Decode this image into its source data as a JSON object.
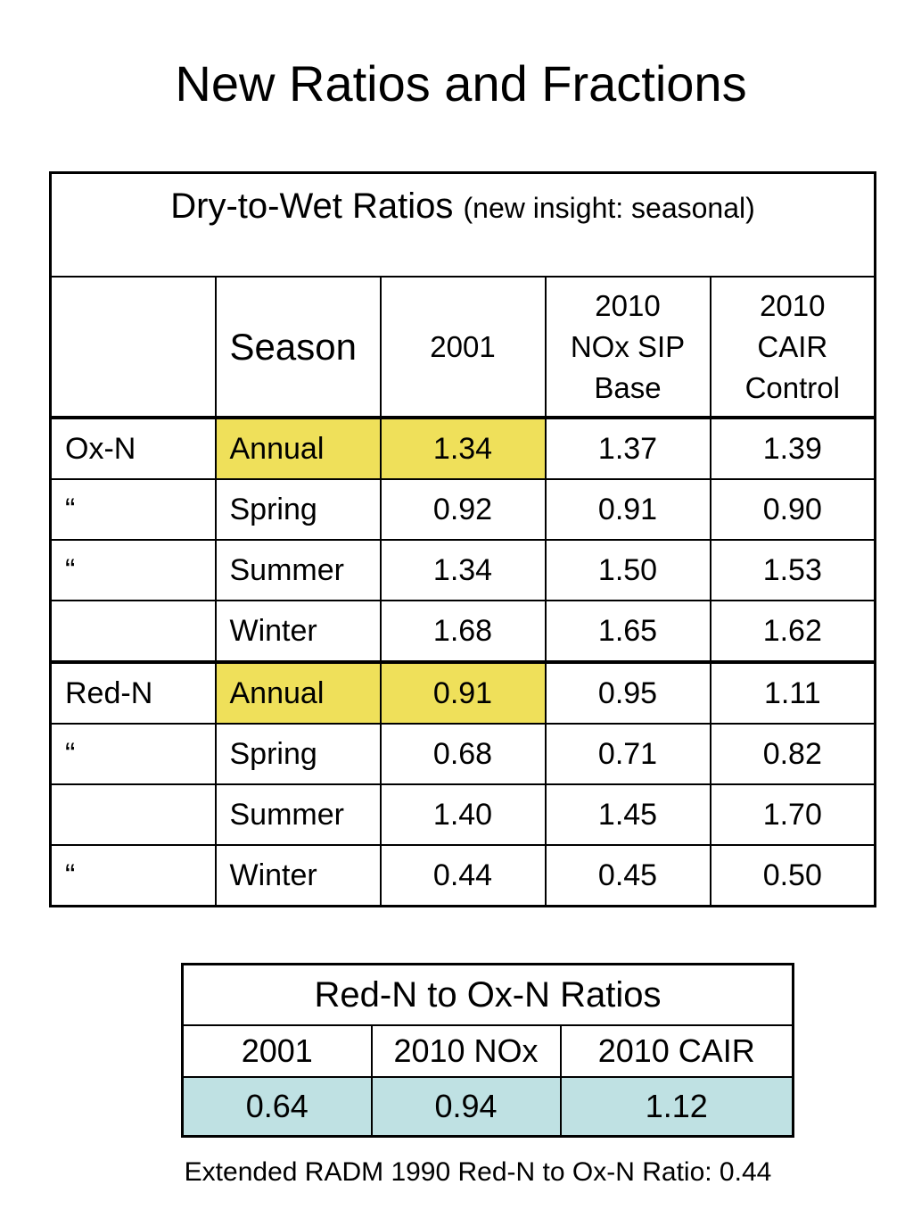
{
  "title": "New Ratios and Fractions",
  "table1": {
    "caption_main": "Dry-to-Wet Ratios",
    "caption_sub": "(new insight: seasonal)",
    "headers": [
      "",
      "Season",
      "2001",
      "2010\nNOx SIP\nBase",
      "2010\nCAIR\nControl"
    ],
    "rows": [
      {
        "group": "Ox-N",
        "season": "Annual",
        "v2001": "1.34",
        "v2010nox": "1.37",
        "v2010cair": "1.39",
        "highlight": true
      },
      {
        "group": "“",
        "season": "Spring",
        "v2001": "0.92",
        "v2010nox": "0.91",
        "v2010cair": "0.90",
        "highlight": false
      },
      {
        "group": "“",
        "season": "Summer",
        "v2001": "1.34",
        "v2010nox": "1.50",
        "v2010cair": "1.53",
        "highlight": false
      },
      {
        "group": "",
        "season": "Winter",
        "v2001": "1.68",
        "v2010nox": "1.65",
        "v2010cair": "1.62",
        "highlight": false
      },
      {
        "group": "Red-N",
        "season": "Annual",
        "v2001": "0.91",
        "v2010nox": "0.95",
        "v2010cair": "1.11",
        "highlight": true
      },
      {
        "group": "“",
        "season": "Spring",
        "v2001": "0.68",
        "v2010nox": "0.71",
        "v2010cair": "0.82",
        "highlight": false
      },
      {
        "group": "",
        "season": "Summer",
        "v2001": "1.40",
        "v2010nox": "1.45",
        "v2010cair": "1.70",
        "highlight": false
      },
      {
        "group": "“",
        "season": "Winter",
        "v2001": "0.44",
        "v2010nox": "0.45",
        "v2010cair": "0.50",
        "highlight": false
      }
    ]
  },
  "table2": {
    "title": "Red-N to Ox-N Ratios",
    "headers": [
      "2001",
      "2010 NOx",
      "2010 CAIR"
    ],
    "values": [
      "0.64",
      "0.94",
      "1.12"
    ]
  },
  "footer": "Extended RADM 1990 Red-N to Ox-N Ratio: 0.44",
  "colors": {
    "highlight_yellow": "#efe05a",
    "highlight_blue": "#bfe1e3"
  }
}
